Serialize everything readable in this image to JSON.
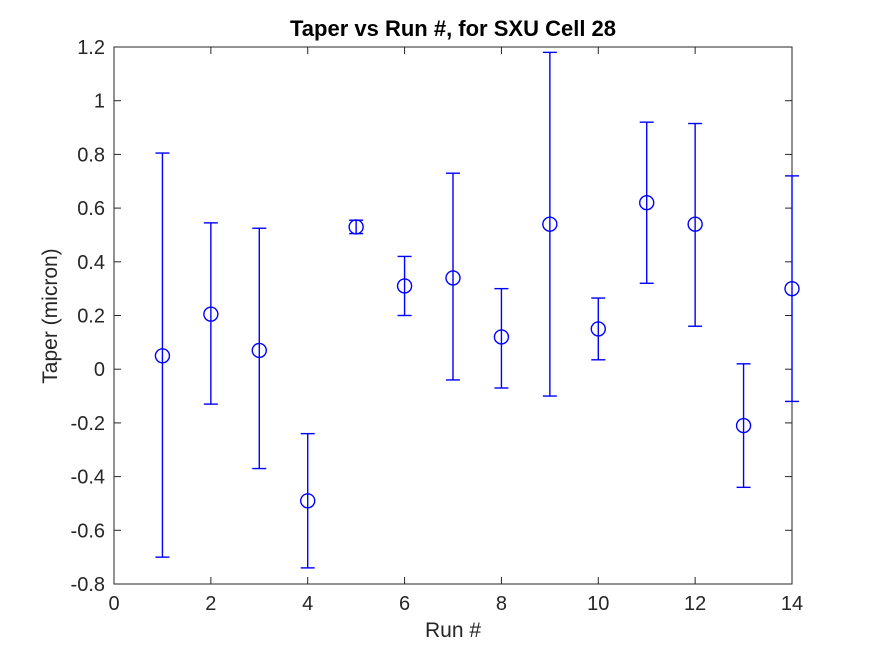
{
  "window": {
    "background": "#ffffff"
  },
  "chart_data": {
    "type": "scatter",
    "subtype": "errorbar",
    "title": "Taper vs Run #, for SXU Cell 28",
    "xlabel": "Run #",
    "ylabel": "Taper (micron)",
    "xlim": [
      0,
      14
    ],
    "ylim": [
      -0.8,
      1.2
    ],
    "xticks": [
      0,
      2,
      4,
      6,
      8,
      10,
      12,
      14
    ],
    "yticks": [
      -0.8,
      -0.6,
      -0.4,
      -0.2,
      0,
      0.2,
      0.4,
      0.6,
      0.8,
      1,
      1.2
    ],
    "grid": false,
    "legend": "none",
    "marker": "open-circle",
    "series_color": "#0000ff",
    "axis_color": "#262626",
    "title_color": "#000000",
    "series": [
      {
        "name": "Taper",
        "x": [
          1,
          2,
          3,
          4,
          5,
          6,
          7,
          8,
          9,
          10,
          11,
          12,
          13,
          14
        ],
        "y": [
          0.05,
          0.205,
          0.07,
          -0.49,
          0.53,
          0.31,
          0.34,
          0.12,
          0.54,
          0.15,
          0.62,
          0.54,
          -0.21,
          0.3
        ],
        "err_lower": [
          -0.7,
          -0.13,
          -0.37,
          -0.74,
          0.505,
          0.2,
          -0.04,
          -0.07,
          -0.1,
          0.035,
          0.32,
          0.16,
          -0.44,
          -0.12
        ],
        "err_upper": [
          0.805,
          0.545,
          0.525,
          -0.24,
          0.555,
          0.42,
          0.73,
          0.3,
          1.18,
          0.265,
          0.92,
          0.915,
          0.02,
          0.72
        ]
      }
    ]
  }
}
